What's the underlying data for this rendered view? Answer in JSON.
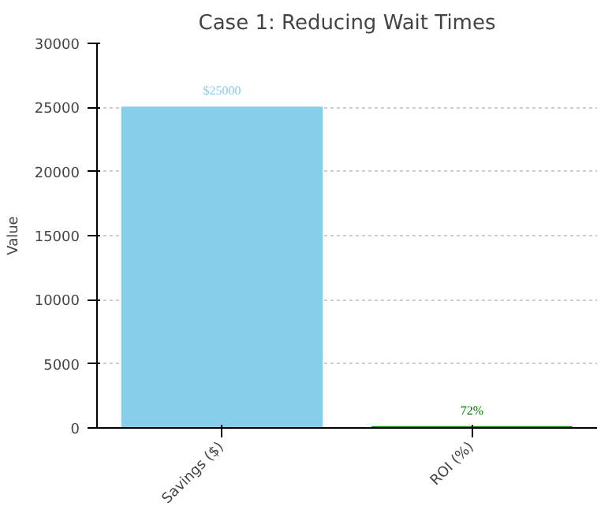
{
  "chart_data": {
    "type": "bar",
    "title": "Case 1: Reducing Wait Times",
    "ylabel": "Value",
    "categories": [
      "Savings ($)",
      "ROI (%)"
    ],
    "values": [
      25000,
      72
    ],
    "colors": [
      "#87ceeb",
      "#008000"
    ],
    "value_labels": [
      "$25000",
      "72%"
    ],
    "ylim": [
      0,
      30000
    ],
    "yticks": [
      0,
      5000,
      10000,
      15000,
      20000,
      25000,
      30000
    ],
    "grid": "y"
  }
}
